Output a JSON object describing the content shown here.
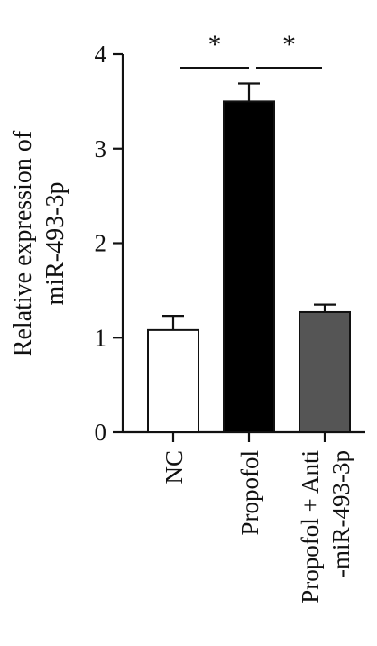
{
  "chart_data": {
    "type": "bar",
    "ylabel": [
      "Relative expression of",
      "miR-493-3p"
    ],
    "ylim": [
      0,
      4
    ],
    "yticks": [
      0,
      1,
      2,
      3,
      4
    ],
    "grid": false,
    "categories": [
      {
        "label": [
          "NC"
        ],
        "value": 1.08,
        "error": 0.15,
        "color": "#ffffff"
      },
      {
        "label": [
          "Propofol"
        ],
        "value": 3.5,
        "error": 0.19,
        "color": "#000000"
      },
      {
        "label": [
          "Propofol + Anti",
          "-miR-493-3p"
        ],
        "value": 1.27,
        "error": 0.08,
        "color": "#555555"
      }
    ],
    "significance": [
      {
        "from": 0,
        "to": 1,
        "label": "*"
      },
      {
        "from": 1,
        "to": 2,
        "label": "*"
      }
    ]
  }
}
